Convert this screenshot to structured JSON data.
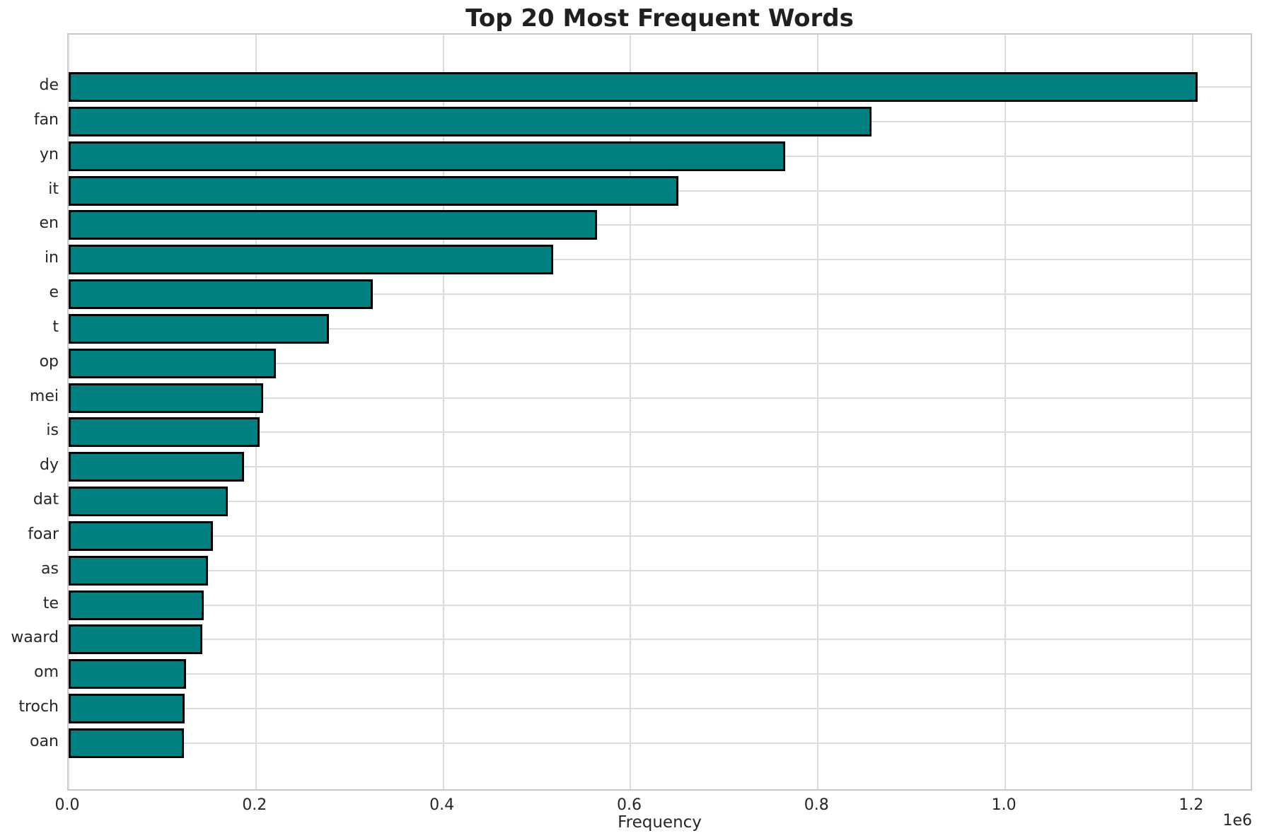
{
  "chart_data": {
    "type": "bar",
    "orientation": "horizontal",
    "title": "Top 20 Most Frequent Words",
    "xlabel": "Frequency",
    "ylabel": "",
    "offset_text": "1e6",
    "categories": [
      "de",
      "fan",
      "yn",
      "it",
      "en",
      "in",
      "e",
      "t",
      "op",
      "mei",
      "is",
      "dy",
      "dat",
      "foar",
      "as",
      "te",
      "waard",
      "om",
      "troch",
      "oan"
    ],
    "values": [
      1205000,
      857000,
      765000,
      651000,
      564000,
      517000,
      325000,
      278000,
      221000,
      208000,
      204000,
      187000,
      170000,
      154000,
      149000,
      144000,
      143000,
      125000,
      124000,
      123000
    ],
    "xlim": [
      0,
      1265000
    ],
    "xticks": [
      {
        "label": "0.0",
        "value": 0
      },
      {
        "label": "0.2",
        "value": 200000
      },
      {
        "label": "0.4",
        "value": 400000
      },
      {
        "label": "0.6",
        "value": 600000
      },
      {
        "label": "0.8",
        "value": 800000
      },
      {
        "label": "1.0",
        "value": 1000000
      },
      {
        "label": "1.2",
        "value": 1200000
      }
    ],
    "grid": true,
    "legend": false,
    "bar_color": "#008080",
    "bar_edge_color": "#000000",
    "grid_color": "#dcdcdc",
    "spine_color": "#c8c8c8",
    "text_color": "#262626",
    "title_color": "#1f1f1f"
  }
}
